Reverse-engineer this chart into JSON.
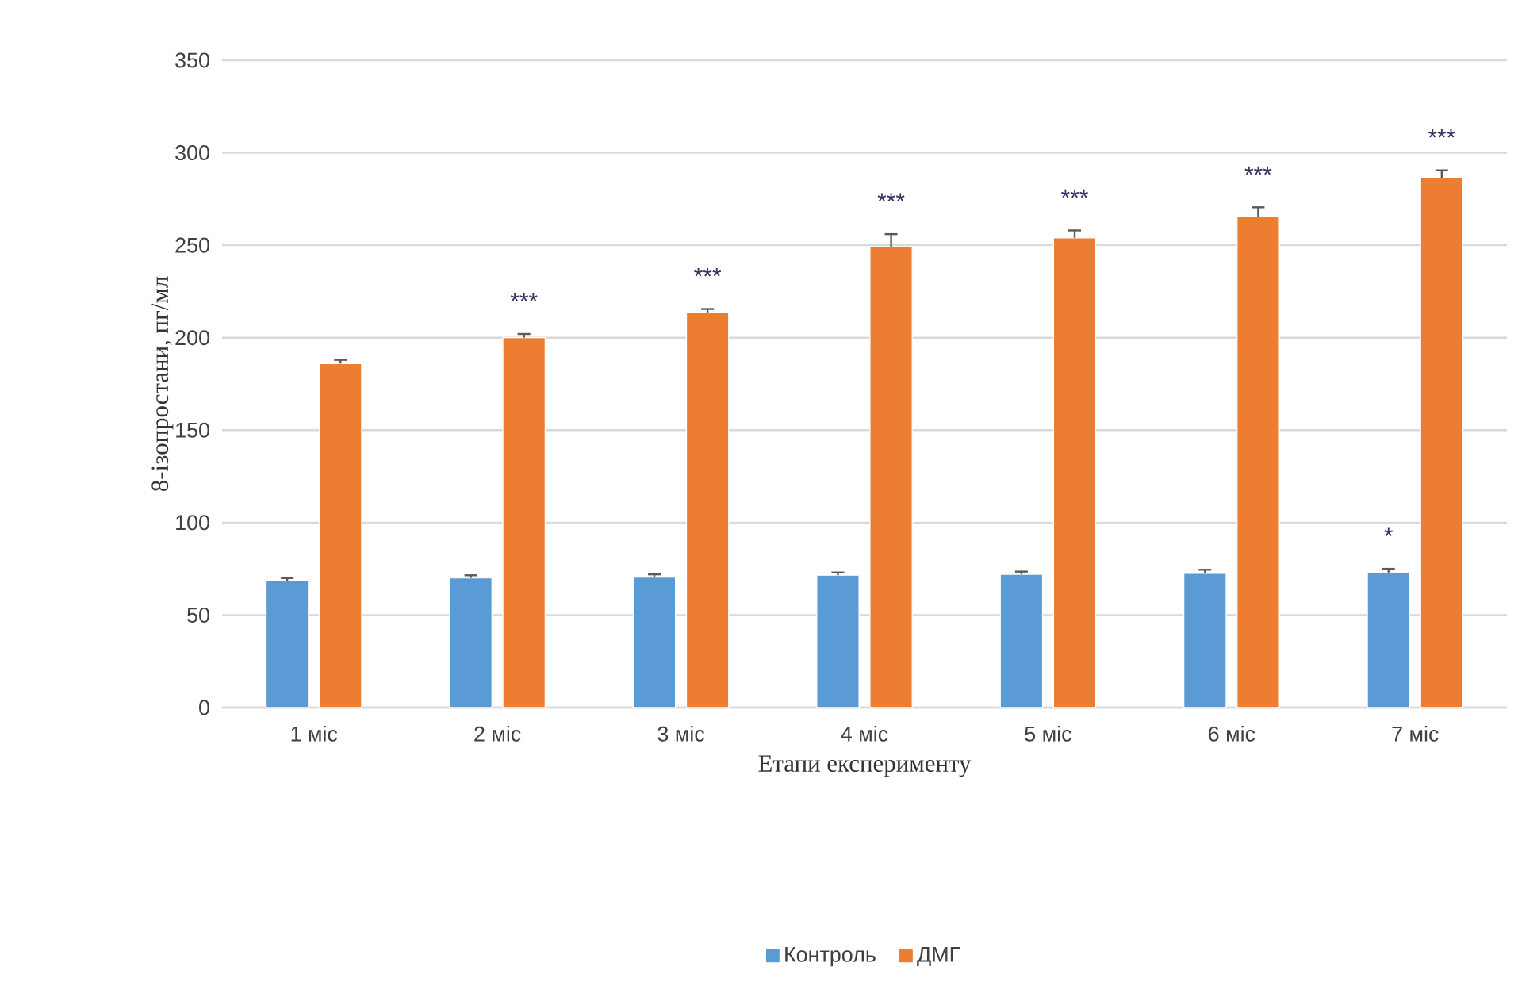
{
  "chart_data": {
    "type": "bar",
    "xlabel": "Етапи експерименту",
    "ylabel": "8-ізопростани, пг/мл",
    "categories": [
      "1 міс",
      "2 міс",
      "3 міс",
      "4 міс",
      "5 міс",
      "6 міс",
      "7 міс"
    ],
    "series": [
      {
        "name": "Контроль",
        "color": "#5b9bd5",
        "values": [
          68.5,
          70,
          70.5,
          71.5,
          72,
          72.5,
          73
        ],
        "errors": [
          1.5,
          1.5,
          1.5,
          1.5,
          1.5,
          2,
          2
        ]
      },
      {
        "name": "ДМГ",
        "color": "#ed7d31",
        "values": [
          186,
          200,
          213.5,
          249,
          254,
          265.5,
          286.5
        ],
        "errors": [
          2,
          2,
          2,
          7,
          4,
          5,
          4
        ]
      }
    ],
    "ylim": [
      0,
      350
    ],
    "yticks": [
      0,
      50,
      100,
      150,
      200,
      250,
      300,
      350
    ],
    "grid": "y",
    "legend": "bottom",
    "annotations": [
      {
        "text": "***",
        "x": "2 міс",
        "y": 200
      },
      {
        "text": "***",
        "x": "3 міс",
        "y": 213.5
      },
      {
        "text": "***",
        "x": "4 міс",
        "y": 249
      },
      {
        "text": "***",
        "x": "5 міс",
        "y": 254
      },
      {
        "text": "***",
        "x": "6 міс",
        "y": 265.5
      },
      {
        "text": "***",
        "x": "7 міс",
        "y": 286.5
      },
      {
        "text": "*",
        "x": "7 міс",
        "y": 73
      }
    ]
  }
}
